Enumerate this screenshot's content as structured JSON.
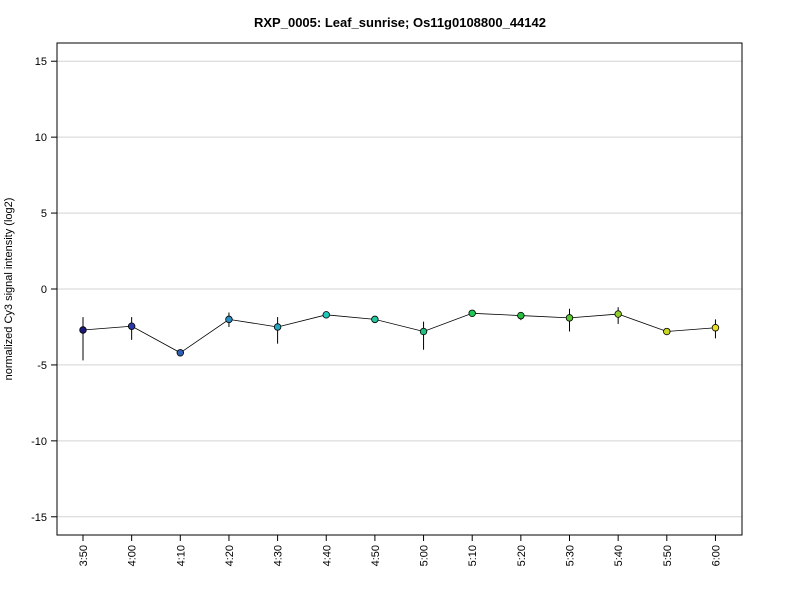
{
  "chart_data": {
    "type": "line",
    "title": "RXP_0005: Leaf_sunrise; Os11g0108800_44142",
    "xlabel": "",
    "ylabel": "normalized Cy3 signal intensity (log2)",
    "ylim": [
      -16.2,
      16.2
    ],
    "yticks": [
      -15,
      -10,
      -5,
      0,
      5,
      10,
      15
    ],
    "grid": true,
    "categories": [
      "3:50",
      "4:00",
      "4:10",
      "4:20",
      "4:30",
      "4:40",
      "4:50",
      "5:00",
      "5:10",
      "5:20",
      "5:30",
      "5:40",
      "5:50",
      "6:00"
    ],
    "series": [
      {
        "values": [
          -2.7,
          -2.45,
          -4.2,
          -2.0,
          -2.5,
          -1.7,
          -2.0,
          -2.8,
          -1.6,
          -1.75,
          -1.9,
          -1.65,
          -2.8,
          -2.55
        ],
        "err_low": [
          -4.7,
          -3.35,
          -4.35,
          -2.5,
          -3.6,
          -1.8,
          -2.15,
          -4.0,
          -1.8,
          -2.05,
          -2.8,
          -2.3,
          -2.85,
          -3.25
        ],
        "err_high": [
          -1.85,
          -1.85,
          -4.05,
          -1.55,
          -1.85,
          -1.6,
          -1.85,
          -2.15,
          -1.45,
          -1.55,
          -1.3,
          -1.2,
          -2.7,
          -2.0
        ],
        "colors": [
          "#1a1a7a",
          "#2a3aa8",
          "#2f5fb0",
          "#2a8fc4",
          "#26a8c0",
          "#22c8b8",
          "#22c8a0",
          "#22c080",
          "#1ec858",
          "#28c040",
          "#58c830",
          "#90d028",
          "#c8d820",
          "#e8e020"
        ]
      }
    ]
  }
}
